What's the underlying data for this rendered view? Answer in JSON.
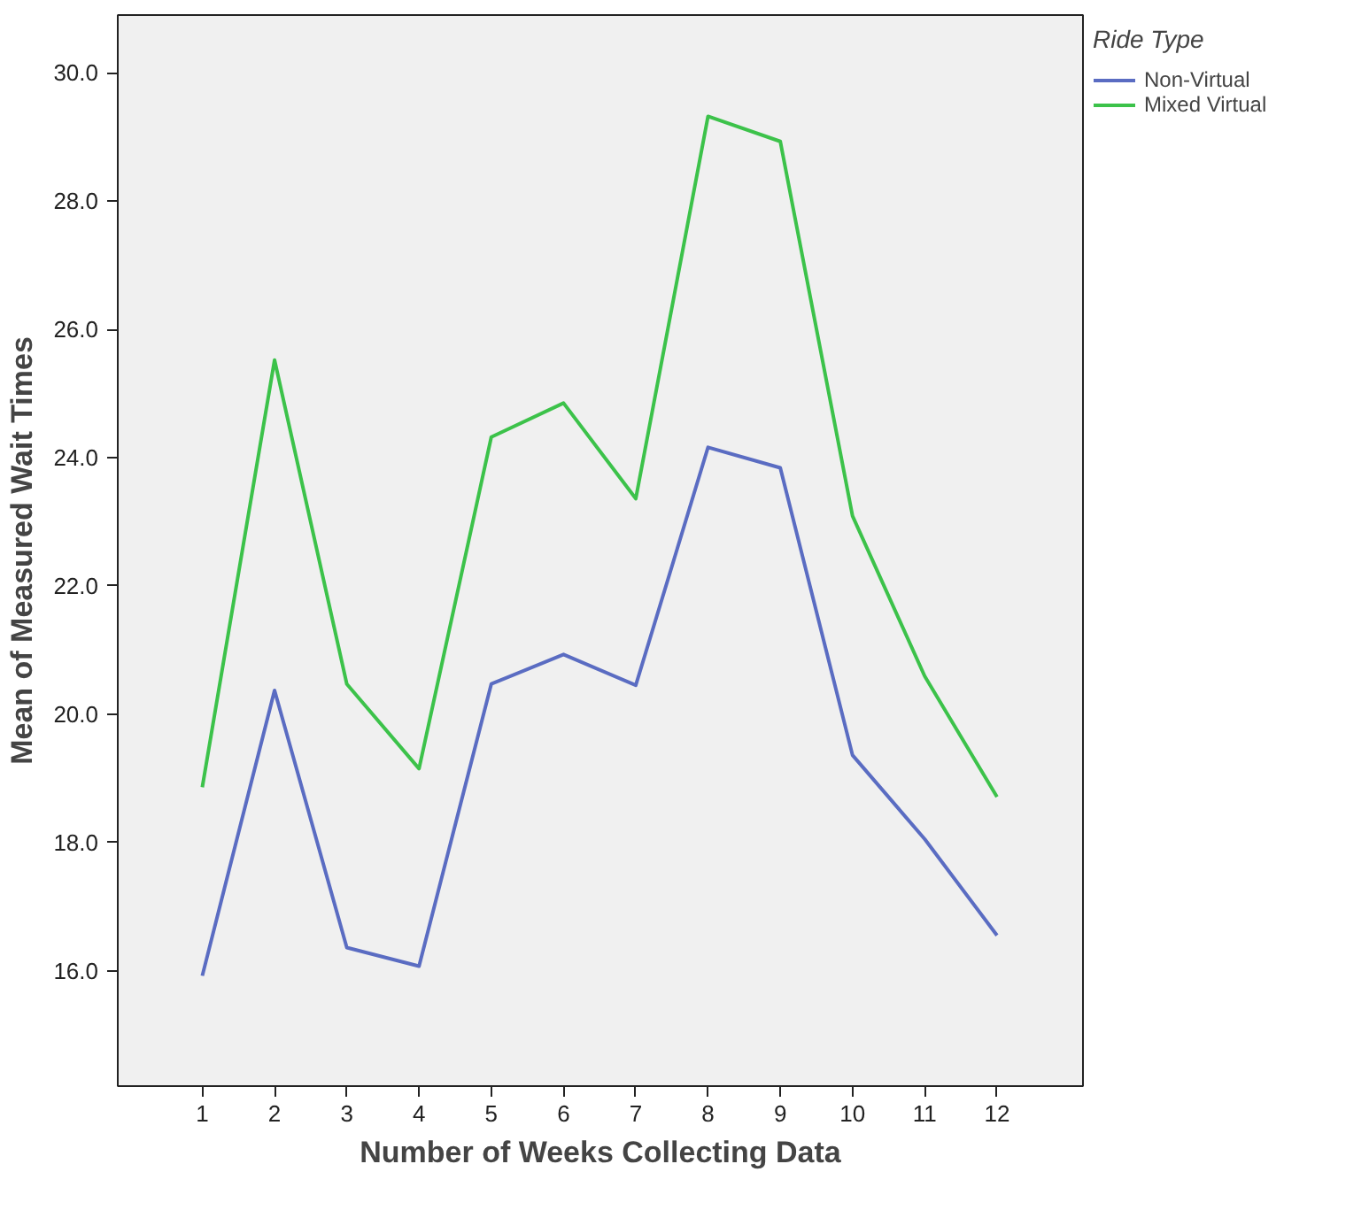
{
  "chart_data": {
    "type": "line",
    "xlabel": "Number of Weeks Collecting Data",
    "ylabel": "Mean of Measured Wait Times",
    "legend_title": "Ride Type",
    "legend": "right",
    "grid": false,
    "marker": "none",
    "line_style": "solid",
    "x": [
      1,
      2,
      3,
      4,
      5,
      6,
      7,
      8,
      9,
      10,
      11,
      12
    ],
    "series": [
      {
        "name": "Non-Virtual",
        "color": "#5a6cc2",
        "values": [
          15.92,
          20.37,
          16.36,
          16.07,
          20.47,
          20.93,
          20.45,
          24.16,
          23.84,
          19.36,
          18.05,
          16.55
        ]
      },
      {
        "name": "Mixed Virtual",
        "color": "#3cc24a",
        "values": [
          18.86,
          25.52,
          20.47,
          19.15,
          24.32,
          24.85,
          23.36,
          29.32,
          28.93,
          23.09,
          20.59,
          18.71
        ]
      }
    ],
    "xlim": [
      -0.17,
      13.19
    ],
    "ylim": [
      14.2,
      30.9
    ],
    "xticks": [
      1,
      2,
      3,
      4,
      5,
      6,
      7,
      8,
      9,
      10,
      11,
      12
    ],
    "yticks": [
      {
        "value": 16,
        "label": "16.0"
      },
      {
        "value": 18,
        "label": "18.0"
      },
      {
        "value": 20,
        "label": "20.0"
      },
      {
        "value": 22,
        "label": "22.0"
      },
      {
        "value": 24,
        "label": "24.0"
      },
      {
        "value": 26,
        "label": "26.0"
      },
      {
        "value": 28,
        "label": "28.0"
      },
      {
        "value": 30,
        "label": "30.0"
      }
    ]
  }
}
